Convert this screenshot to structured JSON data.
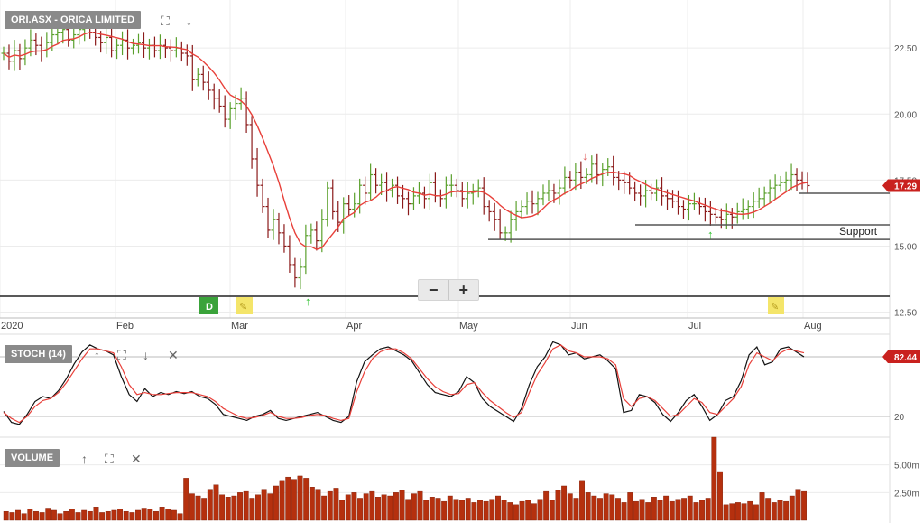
{
  "panes": {
    "price": {
      "label": "ORI.ASX - ORICA LIMITED",
      "last_value": "17.29"
    },
    "stoch": {
      "label": "STOCH (14)",
      "last_value": "82.44"
    },
    "volume": {
      "label": "VOLUME"
    }
  },
  "icons": {
    "expand": "expand-icon",
    "move_down": "arrow-down-icon",
    "move_up": "arrow-up-icon",
    "close": "close-icon",
    "zoom_out": "zoom-out-icon",
    "zoom_in": "zoom-in-icon"
  },
  "glyphs": {
    "expand": "⛶",
    "down": "↓",
    "up": "↑",
    "close": "✕",
    "minus": "−",
    "plus": "+"
  },
  "annotations": {
    "support_label": "Support"
  },
  "colors": {
    "up": "#5aa02c",
    "down": "#8b1a1a",
    "ma": "#e8403a",
    "stoch_k": "#111111",
    "stoch_d": "#e8403a",
    "volume": "#b5300e",
    "last_badge": "#c9211e"
  },
  "chart_data": [
    {
      "type": "ohlc",
      "title": "ORI.ASX - ORICA LIMITED",
      "x_ticks": [
        "2020",
        "Feb",
        "Mar",
        "Apr",
        "May",
        "Jun",
        "Jul",
        "Aug"
      ],
      "y_ticks": [
        "22.50",
        "20.00",
        "17.50",
        "15.00",
        "12.50"
      ],
      "ylim": [
        12.3,
        24.8
      ],
      "close_series": [
        22.3,
        22.0,
        22.4,
        22.1,
        22.5,
        22.8,
        22.6,
        22.4,
        22.7,
        23.0,
        23.1,
        23.2,
        22.8,
        23.0,
        23.2,
        23.3,
        23.1,
        22.9,
        22.7,
        22.9,
        22.4,
        22.6,
        22.8,
        22.5,
        22.6,
        22.7,
        22.5,
        22.6,
        22.4,
        22.6,
        22.5,
        22.4,
        22.5,
        22.3,
        22.2,
        21.3,
        21.5,
        21.2,
        20.9,
        20.6,
        20.3,
        19.8,
        20.2,
        20.4,
        20.6,
        19.6,
        18.3,
        17.3,
        16.5,
        15.6,
        16.0,
        15.5,
        15.0,
        14.3,
        13.8,
        14.2,
        15.4,
        15.6,
        15.2,
        16.0,
        17.2,
        16.3,
        15.9,
        16.6,
        16.4,
        16.6,
        17.3,
        17.0,
        17.7,
        17.3,
        17.4,
        17.1,
        17.3,
        16.9,
        16.8,
        16.6,
        16.9,
        17.0,
        16.8,
        17.4,
        16.9,
        16.8,
        17.3,
        17.3,
        17.1,
        16.8,
        17.0,
        17.1,
        17.2,
        16.5,
        16.3,
        16.0,
        15.5,
        15.5,
        16.0,
        16.3,
        16.5,
        16.7,
        16.6,
        16.8,
        17.0,
        17.1,
        17.0,
        17.2,
        17.6,
        17.5,
        17.8,
        17.6,
        17.7,
        18.1,
        17.7,
        17.9,
        18.0,
        17.6,
        17.5,
        17.4,
        17.2,
        17.0,
        16.9,
        17.1,
        17.0,
        17.2,
        16.9,
        16.8,
        16.7,
        16.5,
        16.4,
        16.6,
        16.6,
        16.5,
        16.3,
        16.2,
        16.1,
        16.0,
        16.2,
        16.1,
        16.3,
        16.4,
        16.5,
        16.7,
        16.8,
        17.0,
        17.2,
        17.3,
        17.4,
        17.5,
        17.7,
        17.5,
        17.4,
        17.29
      ],
      "close_ma_label": "moving average",
      "last_value": 17.29,
      "trendlines": [
        {
          "value": 17.0,
          "x_from": "late Jul",
          "x_to": "end"
        },
        {
          "value": 15.8,
          "x_from": "Jun",
          "x_to": "end"
        },
        {
          "value": 15.25,
          "x_from": "May",
          "x_to": "end",
          "label": "Support"
        },
        {
          "value": 13.1,
          "x_from": "start",
          "x_to": "end"
        }
      ]
    },
    {
      "type": "line",
      "title": "STOCH (14)",
      "y_ticks": [
        "80",
        "20"
      ],
      "ylim": [
        0,
        100
      ],
      "series": [
        {
          "values": [
            25,
            14,
            12,
            22,
            35,
            40,
            38,
            46,
            58,
            73,
            85,
            92,
            88,
            86,
            82,
            60,
            42,
            35,
            48,
            40,
            44,
            42,
            45,
            43,
            45,
            40,
            38,
            32,
            22,
            20,
            18,
            16,
            20,
            22,
            26,
            18,
            16,
            18,
            20,
            22,
            24,
            20,
            16,
            14,
            20,
            55,
            75,
            82,
            88,
            90,
            86,
            82,
            76,
            64,
            52,
            44,
            42,
            40,
            45,
            60,
            54,
            38,
            30,
            25,
            20,
            15,
            28,
            52,
            70,
            80,
            95,
            92,
            82,
            84,
            78,
            80,
            82,
            76,
            68,
            24,
            26,
            42,
            40,
            34,
            22,
            15,
            24,
            36,
            42,
            30,
            16,
            22,
            36,
            40,
            56,
            82,
            90,
            72,
            75,
            88,
            90,
            85,
            80
          ]
        },
        {
          "values": [
            24,
            18,
            14,
            20,
            30,
            36,
            38,
            44,
            54,
            66,
            78,
            88,
            88,
            86,
            84,
            70,
            52,
            42,
            44,
            42,
            42,
            43,
            44,
            44,
            44,
            42,
            40,
            35,
            28,
            24,
            20,
            18,
            19,
            21,
            24,
            20,
            18,
            18,
            19,
            21,
            22,
            21,
            18,
            16,
            18,
            45,
            65,
            78,
            85,
            88,
            88,
            84,
            78,
            68,
            58,
            50,
            45,
            42,
            43,
            52,
            54,
            44,
            36,
            30,
            24,
            19,
            24,
            44,
            62,
            74,
            88,
            92,
            86,
            84,
            80,
            80,
            80,
            78,
            72,
            38,
            30,
            38,
            40,
            36,
            28,
            20,
            22,
            30,
            38,
            34,
            24,
            22,
            30,
            38,
            50,
            72,
            84,
            80,
            76,
            84,
            88,
            86,
            84
          ]
        }
      ]
    },
    {
      "type": "bar",
      "title": "VOLUME",
      "y_ticks": [
        "5.00m",
        "2.50m"
      ],
      "ylim": [
        0,
        7.5
      ],
      "values": [
        0.8,
        0.7,
        0.9,
        0.6,
        1.0,
        0.8,
        0.7,
        1.1,
        0.9,
        0.6,
        0.8,
        1.0,
        0.7,
        0.9,
        0.8,
        1.2,
        0.7,
        0.8,
        0.9,
        1.0,
        0.8,
        0.7,
        0.9,
        1.1,
        1.0,
        0.8,
        1.2,
        1.0,
        0.9,
        0.6,
        3.8,
        2.4,
        2.2,
        2.0,
        2.8,
        3.2,
        2.3,
        2.1,
        2.2,
        2.5,
        2.6,
        2.0,
        2.3,
        2.8,
        2.4,
        3.1,
        3.6,
        3.9,
        3.7,
        4.0,
        3.8,
        3.0,
        2.8,
        2.2,
        2.6,
        2.9,
        1.8,
        2.3,
        2.5,
        2.0,
        2.4,
        2.6,
        2.1,
        2.3,
        2.2,
        2.5,
        2.7,
        1.9,
        2.4,
        2.6,
        1.8,
        2.1,
        2.0,
        1.7,
        2.2,
        1.9,
        1.8,
        2.0,
        1.6,
        1.8,
        1.7,
        1.9,
        2.2,
        1.8,
        1.6,
        1.4,
        1.7,
        1.8,
        1.5,
        1.9,
        2.6,
        1.8,
        2.7,
        3.1,
        2.4,
        2.0,
        3.6,
        2.5,
        2.2,
        2.0,
        2.4,
        2.3,
        2.0,
        1.6,
        2.5,
        1.7,
        1.9,
        1.6,
        2.1,
        1.8,
        2.2,
        1.7,
        1.9,
        2.0,
        2.2,
        1.6,
        1.8,
        2.0,
        7.5,
        4.4,
        1.4,
        1.5,
        1.6,
        1.5,
        1.7,
        1.4,
        2.5,
        2.0,
        1.6,
        1.8,
        1.7,
        2.2,
        2.8,
        2.6
      ]
    }
  ]
}
